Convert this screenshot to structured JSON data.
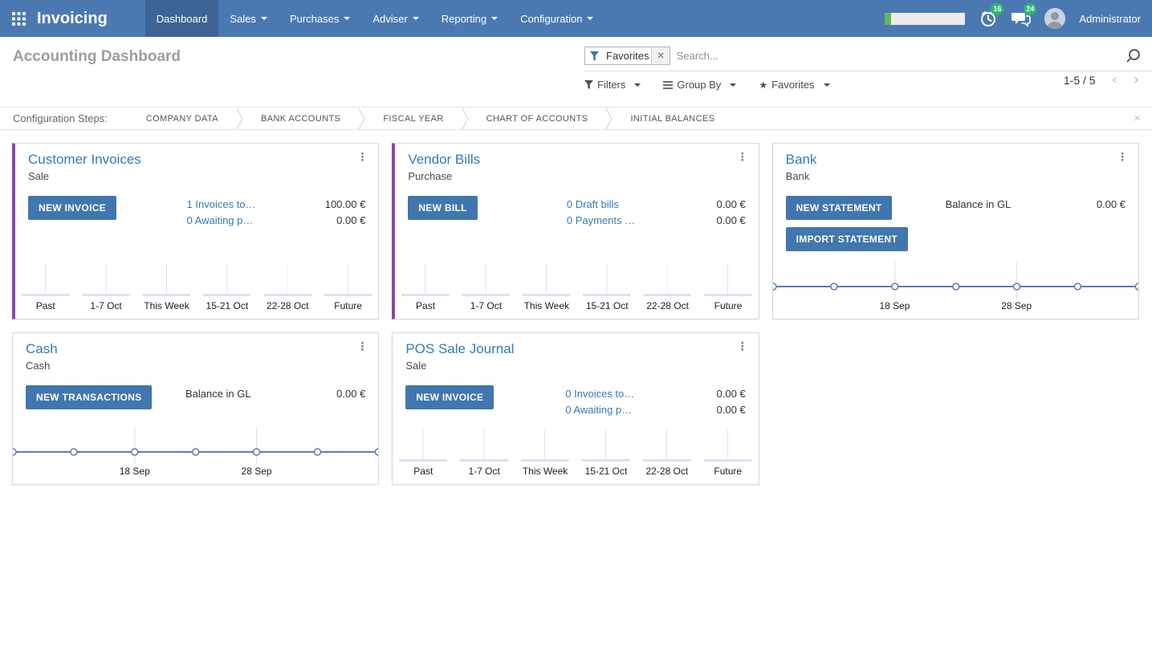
{
  "colors": {
    "navbar": "#4a79b2",
    "navbar_active": "#3d6494",
    "primary_button": "#4176ae",
    "link": "#337ab7",
    "accent_purple": "#8e44ad",
    "badge_green": "#2eb672",
    "progress_green": "#62b75c",
    "chart_line": "#5a7cb8",
    "chart_bar": "#d9e3f0",
    "chart_grid": "#e2e2e2"
  },
  "header": {
    "app_title": "Invoicing",
    "menu": [
      {
        "label": "Dashboard",
        "active": true,
        "dropdown": false
      },
      {
        "label": "Sales",
        "active": false,
        "dropdown": true
      },
      {
        "label": "Purchases",
        "active": false,
        "dropdown": true
      },
      {
        "label": "Adviser",
        "active": false,
        "dropdown": true
      },
      {
        "label": "Reporting",
        "active": false,
        "dropdown": true
      },
      {
        "label": "Configuration",
        "active": false,
        "dropdown": true
      }
    ],
    "systray": {
      "progress_pct": 8,
      "timer_badge": "16",
      "messages_badge": "24",
      "user_name": "Administrator"
    }
  },
  "control_panel": {
    "title": "Accounting Dashboard",
    "search": {
      "facet_label": "Favorites",
      "placeholder": "Search..."
    },
    "filter_buttons": [
      {
        "label": "Filters",
        "icon": "funnel"
      },
      {
        "label": "Group By",
        "icon": "bars"
      },
      {
        "label": "Favorites",
        "icon": "star"
      }
    ],
    "pager": {
      "value": "1-5 / 5",
      "prev": "‹",
      "next": "›"
    }
  },
  "config_steps": {
    "label": "Configuration Steps:",
    "steps": [
      "COMPANY DATA",
      "BANK ACCOUNTS",
      "FISCAL YEAR",
      "CHART OF ACCOUNTS",
      "INITIAL BALANCES"
    ],
    "close": "×"
  },
  "cards": [
    {
      "title": "Customer Invoices",
      "subtitle": "Sale",
      "accent": true,
      "buttons": [
        "NEW INVOICE"
      ],
      "rows": [
        {
          "label": "1 Invoices to…",
          "link": true,
          "amount": "100.00 €"
        },
        {
          "label": "0 Awaiting p…",
          "link": true,
          "amount": "0.00 €"
        }
      ],
      "chart": {
        "type": "bar",
        "categories": [
          "Past",
          "1-7 Oct",
          "This Week",
          "15-21 Oct",
          "22-28 Oct",
          "Future"
        ],
        "values": [
          0,
          0,
          0,
          0,
          0,
          0
        ]
      }
    },
    {
      "title": "Vendor Bills",
      "subtitle": "Purchase",
      "accent": true,
      "buttons": [
        "NEW BILL"
      ],
      "rows": [
        {
          "label": "0 Draft bills",
          "link": true,
          "amount": "0.00 €"
        },
        {
          "label": "0 Payments …",
          "link": true,
          "amount": "0.00 €"
        }
      ],
      "chart": {
        "type": "bar",
        "categories": [
          "Past",
          "1-7 Oct",
          "This Week",
          "15-21 Oct",
          "22-28 Oct",
          "Future"
        ],
        "values": [
          0,
          0,
          0,
          0,
          0,
          0
        ]
      }
    },
    {
      "title": "Bank",
      "subtitle": "Bank",
      "accent": false,
      "buttons": [
        "NEW STATEMENT",
        "IMPORT STATEMENT"
      ],
      "rows": [
        {
          "label": "Balance in GL",
          "link": false,
          "amount": "0.00 €"
        }
      ],
      "chart": {
        "type": "line",
        "points": 7,
        "values": [
          0,
          0,
          0,
          0,
          0,
          0,
          0
        ],
        "tick_labels": [
          "18 Sep",
          "28 Sep"
        ],
        "tick_positions": [
          0.3333,
          0.6667
        ]
      }
    },
    {
      "title": "Cash",
      "subtitle": "Cash",
      "accent": false,
      "buttons": [
        "NEW TRANSACTIONS"
      ],
      "rows": [
        {
          "label": "Balance in GL",
          "link": false,
          "amount": "0.00 €"
        }
      ],
      "chart": {
        "type": "line",
        "points": 7,
        "values": [
          0,
          0,
          0,
          0,
          0,
          0,
          0
        ],
        "tick_labels": [
          "18 Sep",
          "28 Sep"
        ],
        "tick_positions": [
          0.3333,
          0.6667
        ]
      }
    },
    {
      "title": "POS Sale Journal",
      "subtitle": "Sale",
      "accent": false,
      "buttons": [
        "NEW INVOICE"
      ],
      "rows": [
        {
          "label": "0 Invoices to…",
          "link": true,
          "amount": "0.00 €"
        },
        {
          "label": "0 Awaiting p…",
          "link": true,
          "amount": "0.00 €"
        }
      ],
      "chart": {
        "type": "bar",
        "categories": [
          "Past",
          "1-7 Oct",
          "This Week",
          "15-21 Oct",
          "22-28 Oct",
          "Future"
        ],
        "values": [
          0,
          0,
          0,
          0,
          0,
          0
        ]
      }
    }
  ]
}
